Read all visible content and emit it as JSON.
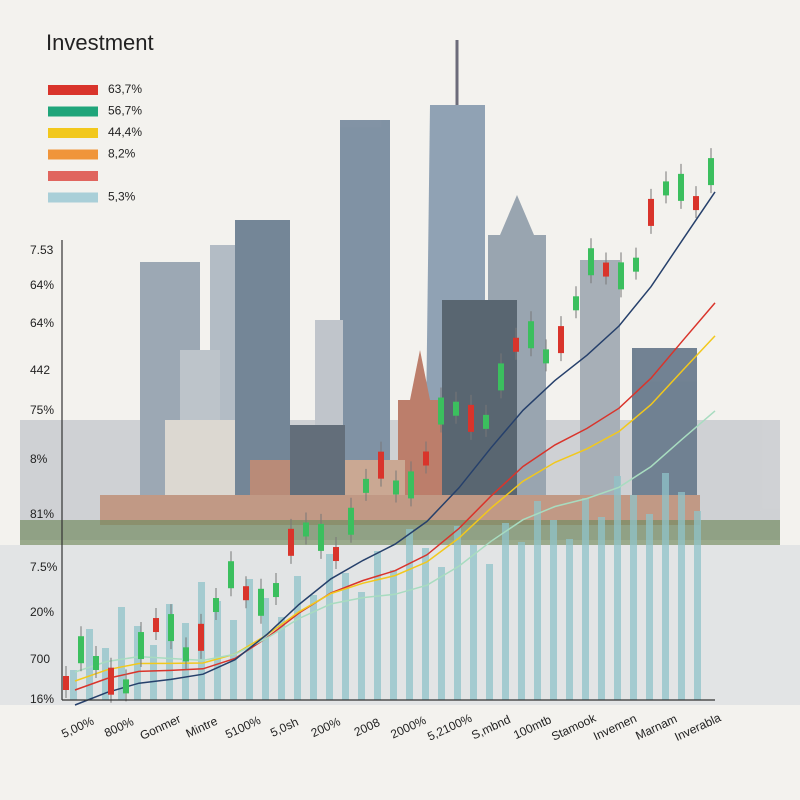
{
  "title": "Investment",
  "legend": [
    {
      "label": "63,7%",
      "color": "#d9342b"
    },
    {
      "label": "56,7%",
      "color": "#1fa57a"
    },
    {
      "label": "44,4%",
      "color": "#f2c81c"
    },
    {
      "label": "8,2%",
      "color": "#f0953a"
    },
    {
      "color": "#e0655e"
    },
    {
      "label": "5,3%",
      "color": "#a9cfd8"
    }
  ],
  "y_labels": [
    "7.53",
    "64%",
    "64%",
    "442",
    "75%",
    "8%",
    "81%",
    "7.5%",
    "20%",
    "700",
    "16%"
  ],
  "x_labels": [
    "5,00%",
    "800%",
    "Gonmer",
    "Mintre",
    "5100%",
    "5,0sh",
    "200%",
    "2008",
    "2000%",
    "5,2100%",
    "S,mbnd",
    "100mtb",
    "Stamook",
    "Invemen",
    "Marnam",
    "Inverabla"
  ]
}
